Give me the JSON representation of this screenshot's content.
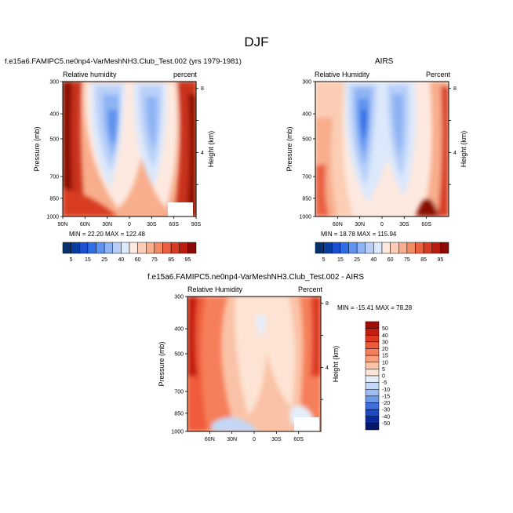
{
  "title": "DJF",
  "panels": [
    {
      "heading": "f.e15a6.FAMIPC5.ne0np4-VarMeshNH3.Club_Test.002 (yrs 1979-1981)",
      "left_label": "Relative humidity",
      "right_label": "percent",
      "stats": "MIN = 22.20  MAX = 122.48"
    },
    {
      "heading": "AIRS",
      "left_label": "Relative Humidity",
      "right_label": "Percent",
      "stats": "MIN = 18.78  MAX = 115.94"
    },
    {
      "heading": "f.e15a6.FAMIPC5.ne0np4-VarMeshNH3.Club_Test.002 - AIRS",
      "left_label": "Relative Humidity",
      "right_label": "Percent",
      "stats": "MIN = -15.41  MAX =  78.28"
    }
  ],
  "axes": {
    "ylabel": "Pressure (mb)",
    "y2label": "Height (km)",
    "pressure_ticks": [
      "300",
      "400",
      "500",
      "700",
      "850",
      "1000"
    ],
    "height_ticks": [
      "8",
      "4"
    ],
    "lat_ticks_full": [
      "90N",
      "60N",
      "30N",
      "0",
      "30S",
      "60S",
      "90S"
    ],
    "lat_ticks_inner": [
      "60N",
      "30N",
      "0",
      "30S",
      "60S"
    ]
  },
  "colorbars": {
    "abs_labels": [
      "5",
      "15",
      "25",
      "40",
      "60",
      "75",
      "85",
      "95"
    ],
    "abs_colors": [
      "#08306b",
      "#083f9e",
      "#1c4fd1",
      "#2f6ee6",
      "#5e93ef",
      "#8db3f4",
      "#b7cff8",
      "#dce8fb",
      "#fde9df",
      "#fbcdb4",
      "#f8ad8c",
      "#f38a66",
      "#ea6142",
      "#d83c23",
      "#b81d10",
      "#8a0a05"
    ],
    "diff_labels": [
      "50",
      "40",
      "30",
      "20",
      "15",
      "10",
      "5",
      "0",
      "-5",
      "-10",
      "-15",
      "-20",
      "-30",
      "-40",
      "-50"
    ],
    "diff_colors": [
      "#a50e07",
      "#c41e10",
      "#de3a22",
      "#ef5b3a",
      "#f57f5a",
      "#f8a07e",
      "#fac2a6",
      "#fde3d3",
      "#e4eefb",
      "#c3d7f6",
      "#9dbcf1",
      "#6f9aea",
      "#3f6fdd",
      "#1e48c4",
      "#0a2a9c",
      "#06186a"
    ]
  },
  "chart_data": [
    {
      "type": "heatmap",
      "title": "f.e15a6.FAMIPC5.ne0np4-VarMeshNH3.Club_Test.002 (yrs 1979-1981)",
      "field": "Relative humidity (percent)",
      "xlabel": "",
      "ylabel": "Pressure (mb)",
      "y2label": "Height (km)",
      "xlim": [
        "90N",
        "90S"
      ],
      "ylim": [
        1000,
        300
      ],
      "min": 22.2,
      "max": 122.48,
      "levels": [
        5,
        10,
        15,
        20,
        25,
        30,
        40,
        50,
        60,
        65,
        75,
        80,
        85,
        90,
        95
      ]
    },
    {
      "type": "heatmap",
      "title": "AIRS",
      "field": "Relative Humidity (Percent)",
      "xlabel": "",
      "ylabel": "Pressure (mb)",
      "y2label": "Height (km)",
      "ylim": [
        1000,
        300
      ],
      "min": 18.78,
      "max": 115.94,
      "levels": [
        5,
        10,
        15,
        20,
        25,
        30,
        40,
        50,
        60,
        65,
        75,
        80,
        85,
        90,
        95
      ]
    },
    {
      "type": "heatmap",
      "title": "f.e15a6.FAMIPC5.ne0np4-VarMeshNH3.Club_Test.002 - AIRS",
      "field": "Relative Humidity (Percent)",
      "xlabel": "",
      "ylabel": "Pressure (mb)",
      "y2label": "Height (km)",
      "ylim": [
        1000,
        300
      ],
      "min": -15.41,
      "max": 78.28,
      "levels": [
        -50,
        -40,
        -30,
        -20,
        -15,
        -10,
        -5,
        0,
        5,
        10,
        15,
        20,
        30,
        40,
        50
      ]
    }
  ]
}
